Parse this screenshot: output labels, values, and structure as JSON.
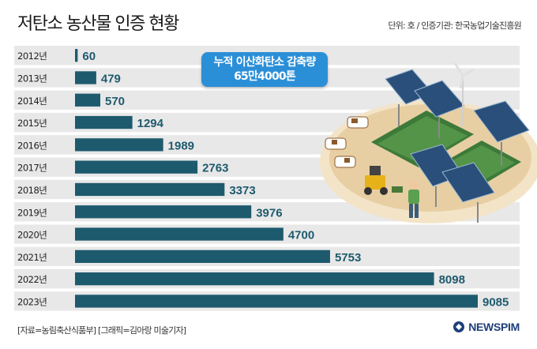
{
  "title": "저탄소 농산물 인증 현황",
  "unit_note": "단위: 호 / 인증기관: 한국농업기술진흥원",
  "callout": {
    "line1": "누적 이산화탄소 감축량",
    "line2": "65만4000톤"
  },
  "footer": "[자료=농림축산식품부] [그래픽=김아랑 미술기자]",
  "logo": {
    "text": "NEWSPIM"
  },
  "colors": {
    "bar": "#1e5a6e",
    "row_bg": "#e8e8e8",
    "callout": "#2b8fd8",
    "logo": "#1f3f7a"
  },
  "illustration": "solar-farm-with-cows-and-farmer",
  "chart_data": {
    "type": "bar",
    "orientation": "horizontal",
    "categories": [
      "2012년",
      "2013년",
      "2014년",
      "2015년",
      "2016년",
      "2017년",
      "2018년",
      "2019년",
      "2020년",
      "2021년",
      "2022년",
      "2023년"
    ],
    "values": [
      60,
      479,
      570,
      1294,
      1989,
      2763,
      3373,
      3976,
      4700,
      5753,
      8098,
      9085
    ],
    "value_labels": [
      "60",
      "479",
      "570",
      "1294",
      "1989",
      "2763",
      "3373",
      "3976",
      "4700",
      "5753",
      "8098",
      "9085"
    ],
    "xlim": [
      0,
      9085
    ]
  }
}
